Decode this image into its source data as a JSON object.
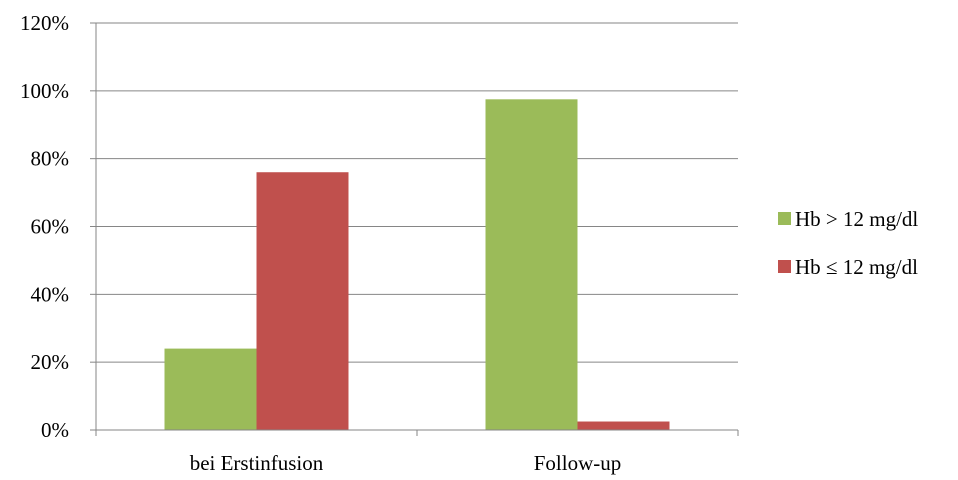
{
  "chart_data": {
    "type": "bar",
    "categories": [
      "bei Erstinfusion",
      "Follow-up"
    ],
    "series": [
      {
        "name": "Hb > 12 mg/dl",
        "values": [
          24,
          97.5
        ],
        "color": "#9BBB59"
      },
      {
        "name": "Hb ≤ 12 mg/dl",
        "values": [
          76,
          2.5
        ],
        "color": "#C0504D"
      }
    ],
    "y_ticks": [
      "0%",
      "20%",
      "40%",
      "60%",
      "80%",
      "100%",
      "120%"
    ],
    "ylim": [
      0,
      120
    ],
    "ytick_step": 20,
    "grid": true,
    "legend_position": "right",
    "axis_color": "#868686",
    "grid_color": "#868686"
  }
}
